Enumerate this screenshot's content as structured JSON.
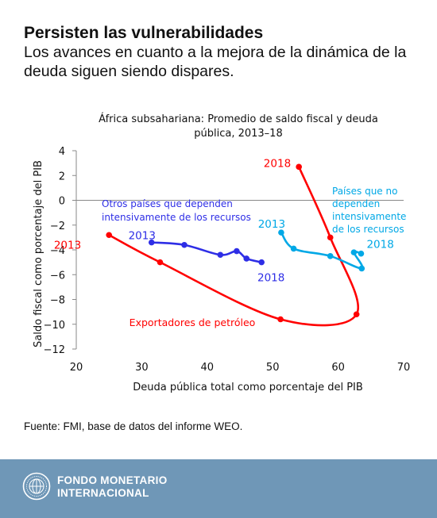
{
  "header": {
    "title": "Persisten las vulnerabilidades",
    "subtitle": "Los avances en cuanto a la mejora de la dinámica de la deuda siguen siendo dispares."
  },
  "chart_data": {
    "type": "line",
    "title": "África subsahariana: Promedio de saldo fiscal y deuda pública, 2013–18",
    "title_lines": [
      "África subsahariana: Promedio de saldo fiscal y deuda",
      "pública, 2013–18"
    ],
    "xlabel": "Deuda pública total como porcentaje del PIB",
    "ylabel": "Saldo fiscal como porcentaje del PIB",
    "xlim": [
      20,
      70
    ],
    "ylim": [
      -12,
      4
    ],
    "xticks": [
      20,
      30,
      40,
      50,
      60,
      70
    ],
    "yticks": [
      -12,
      -10,
      -8,
      -6,
      -4,
      -2,
      0,
      2,
      4
    ],
    "grid": false,
    "series": [
      {
        "name": "Exportadores de petróleo",
        "color": "#ff0000",
        "points": [
          {
            "year": 2013,
            "x": 25.0,
            "y": -2.8
          },
          {
            "year": 2014,
            "x": 32.8,
            "y": -5.0
          },
          {
            "year": 2015,
            "x": 51.2,
            "y": -9.6
          },
          {
            "year": 2016,
            "x": 62.8,
            "y": -9.2
          },
          {
            "year": 2017,
            "x": 58.8,
            "y": -3.0
          },
          {
            "year": 2018,
            "x": 54.0,
            "y": 2.7
          }
        ]
      },
      {
        "name": "Otros países que dependen intensivamente de los recursos",
        "name_lines": [
          "Otros países que dependen",
          "intensivamente de los recursos"
        ],
        "color": "#2e2ee6",
        "points": [
          {
            "year": 2013,
            "x": 31.5,
            "y": -3.4
          },
          {
            "year": 2014,
            "x": 36.5,
            "y": -3.6
          },
          {
            "year": 2015,
            "x": 42.0,
            "y": -4.4
          },
          {
            "year": 2016,
            "x": 44.5,
            "y": -4.1
          },
          {
            "year": 2017,
            "x": 46.0,
            "y": -4.7
          },
          {
            "year": 2018,
            "x": 48.3,
            "y": -5.0
          }
        ]
      },
      {
        "name": "Países que no dependen intensivamente de los recursos",
        "name_lines": [
          "Países que no",
          "dependen",
          "intensivamente",
          "de los recursos"
        ],
        "color": "#00a8e6",
        "points": [
          {
            "year": 2013,
            "x": 51.3,
            "y": -2.6
          },
          {
            "year": 2014,
            "x": 53.2,
            "y": -3.9
          },
          {
            "year": 2015,
            "x": 58.8,
            "y": -4.5
          },
          {
            "year": 2016,
            "x": 63.6,
            "y": -5.5
          },
          {
            "year": 2017,
            "x": 62.4,
            "y": -4.2
          },
          {
            "year": 2018,
            "x": 63.5,
            "y": -4.3
          }
        ]
      }
    ],
    "annotations": [
      "2013",
      "2018",
      "2013",
      "2018",
      "2013",
      "2018"
    ]
  },
  "source": "Fuente: FMI, base de datos del informe WEO.",
  "footer": {
    "org_line1": "FONDO MONETARIO",
    "org_line2": "INTERNACIONAL",
    "logo_icon": "imf-seal-icon",
    "background": "#6f97b7"
  }
}
